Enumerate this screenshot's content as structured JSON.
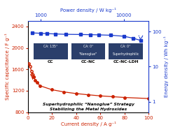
{
  "chart_data": {
    "type": "line",
    "xlabel": "Current density / A g⁻¹",
    "ylabel": "Specific capacitance / F g⁻¹",
    "x2label": "Power density / W kg⁻¹",
    "y2label": "Energy density / Wh kg⁻¹",
    "xlim": [
      0,
      100
    ],
    "xticks": [
      0,
      20,
      40,
      60,
      80,
      100
    ],
    "ylim": [
      800,
      2500
    ],
    "yticks": [
      800,
      1200,
      1600,
      2000,
      2400
    ],
    "x2lim": [
      700,
      20000
    ],
    "x2ticks": [
      1000,
      10000
    ],
    "y2lim": [
      0.5,
      200
    ],
    "y2ticks": [
      1,
      10,
      100
    ],
    "series": [
      {
        "color": "#cc2200",
        "x": [
          1,
          2,
          3,
          4,
          5
        ],
        "values": [
          1710,
          1650,
          1570,
          1510,
          1460
        ],
        "marker": "open_circle",
        "line_style": "dashed"
      },
      {
        "color": "#cc2200",
        "x": [
          5,
          6,
          8,
          10,
          20,
          30,
          40,
          50,
          60,
          70,
          80,
          100
        ],
        "values": [
          1460,
          1400,
          1350,
          1295,
          1220,
          1178,
          1148,
          1125,
          1105,
          1090,
          1075,
          1055
        ],
        "marker": "circle",
        "line_style": "solid"
      },
      {
        "color": "#1a3acc",
        "x": [
          800,
          1000,
          1200,
          1500,
          2000,
          3000,
          4000,
          5000,
          7000,
          10000,
          13000,
          16000
        ],
        "values": [
          92,
          90,
          88,
          86,
          84,
          83,
          82,
          81,
          79,
          74,
          65,
          56
        ],
        "marker": "square",
        "line_style": "solid",
        "axis": "y2",
        "log": true
      }
    ],
    "arrows": [
      {
        "axis": "y",
        "x": 4,
        "from": 1460,
        "to": 1380,
        "color": "#cc2200",
        "line_style": "solid"
      },
      {
        "axis": "y2",
        "x": 16000,
        "from": 70,
        "to": 56,
        "color": "#1a3acc",
        "line_style": "dashed"
      }
    ],
    "insets": [
      {
        "label": "CC",
        "texts": [
          "CA: 135°"
        ]
      },
      {
        "label": "CC-NC",
        "texts": [
          "CA: 0°",
          "\"Nanoglue\""
        ]
      },
      {
        "label": "CC-NC-LDH",
        "texts": [
          "CA: 0°",
          "Superhydrophilic"
        ]
      }
    ],
    "annotations": [
      "Superhydrophilic “Nanoglue” Strategy",
      "Stabilizing the Metal Hydroxides"
    ]
  }
}
